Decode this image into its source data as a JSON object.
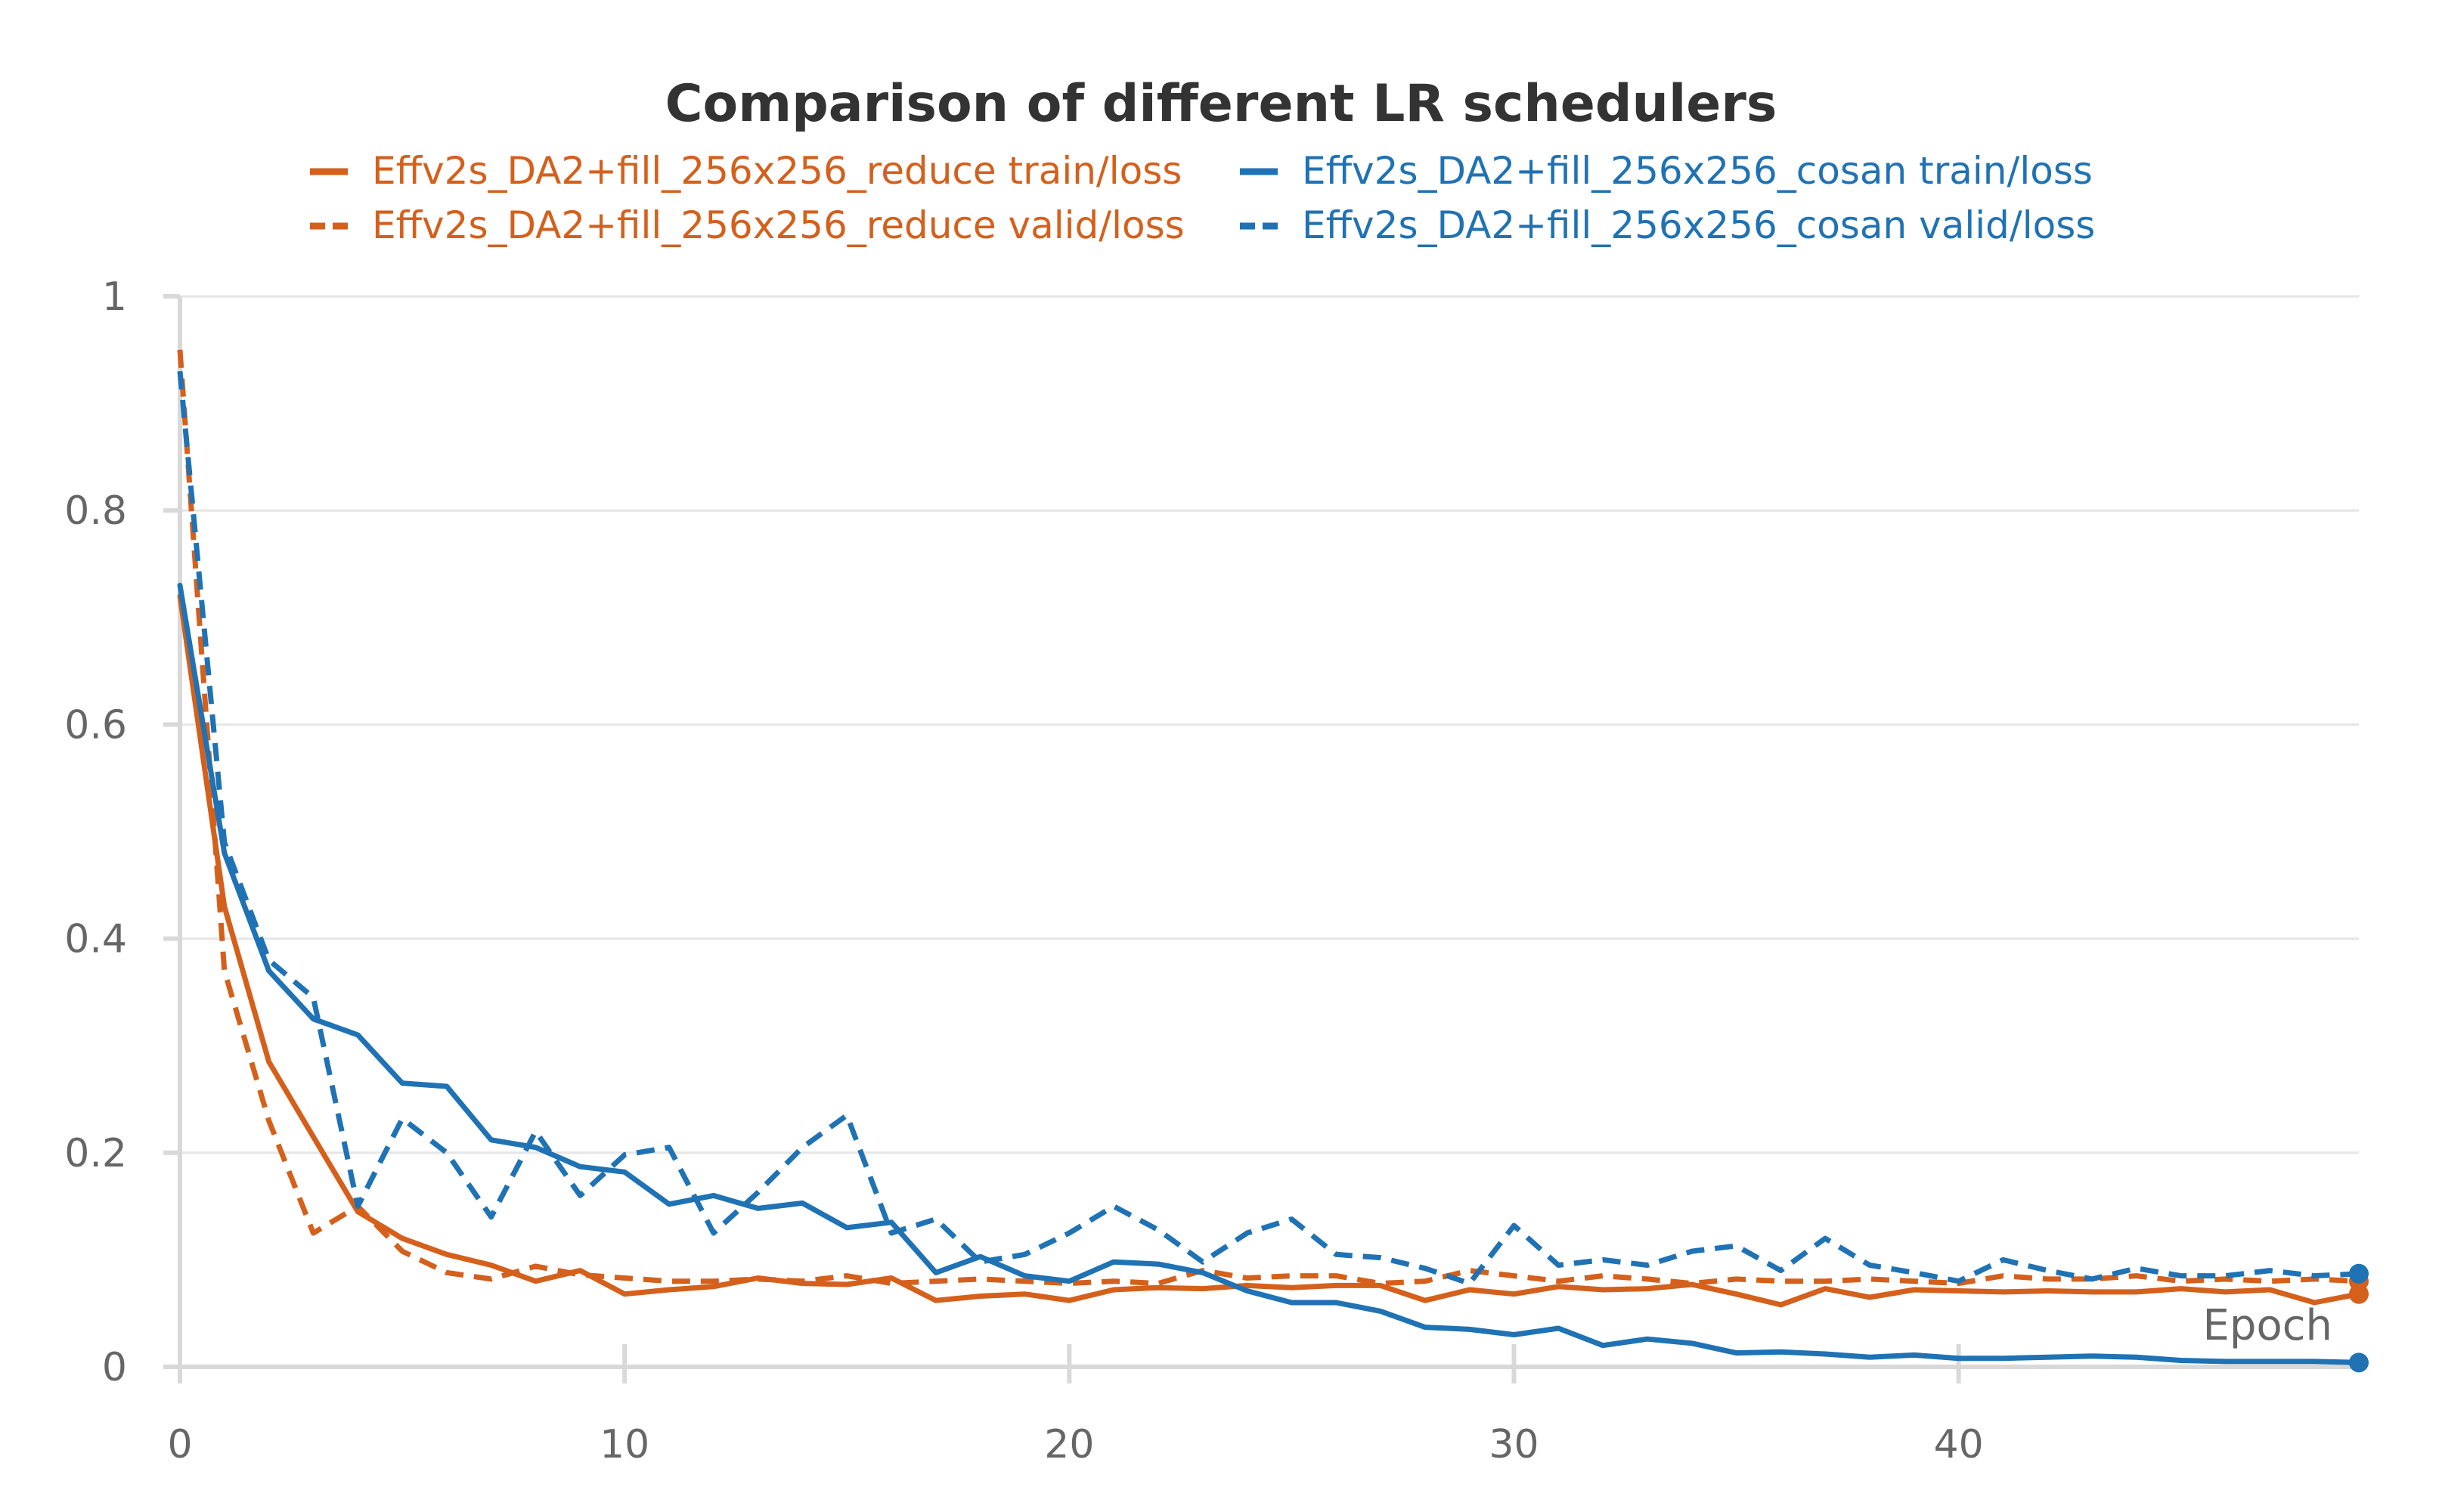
{
  "chart_data": {
    "type": "line",
    "title": "Comparison of different LR schedulers",
    "xlabel": "Epoch",
    "ylabel": "",
    "xlim": [
      0,
      49
    ],
    "ylim": [
      0,
      1
    ],
    "xticks": [
      0,
      10,
      20,
      30,
      40
    ],
    "yticks": [
      0,
      0.2,
      0.4,
      0.6,
      0.8,
      1
    ],
    "ytick_labels": [
      "0",
      "0.2",
      "0.4",
      "0.6",
      "0.8",
      "1"
    ],
    "grid": true,
    "legend_position": "top-center",
    "series": [
      {
        "name": "Effv2s_DA2+fill_256x256_reduce train/loss",
        "color": "#d4601c",
        "dash": "solid",
        "end_marker": true,
        "values": [
          0.72,
          0.43,
          0.285,
          0.215,
          0.145,
          0.12,
          0.105,
          0.095,
          0.08,
          0.09,
          0.068,
          0.072,
          0.075,
          0.083,
          0.078,
          0.077,
          0.083,
          0.062,
          0.066,
          0.068,
          0.062,
          0.072,
          0.074,
          0.073,
          0.076,
          0.074,
          0.076,
          0.076,
          0.062,
          0.072,
          0.068,
          0.075,
          0.072,
          0.073,
          0.077,
          0.068,
          0.058,
          0.073,
          0.065,
          0.072,
          0.071,
          0.07,
          0.071,
          0.07,
          0.07,
          0.073,
          0.07,
          0.072,
          0.06,
          0.068
        ]
      },
      {
        "name": "Effv2s_DA2+fill_256x256_reduce valid/loss",
        "color": "#d4601c",
        "dash": "dashed",
        "end_marker": true,
        "values": [
          0.95,
          0.37,
          0.23,
          0.125,
          0.15,
          0.108,
          0.088,
          0.082,
          0.094,
          0.086,
          0.083,
          0.08,
          0.08,
          0.082,
          0.08,
          0.085,
          0.078,
          0.08,
          0.082,
          0.08,
          0.078,
          0.08,
          0.078,
          0.09,
          0.083,
          0.085,
          0.085,
          0.078,
          0.08,
          0.09,
          0.085,
          0.08,
          0.085,
          0.082,
          0.078,
          0.082,
          0.08,
          0.08,
          0.082,
          0.08,
          0.078,
          0.085,
          0.082,
          0.082,
          0.085,
          0.08,
          0.082,
          0.08,
          0.082,
          0.08
        ]
      },
      {
        "name": "Effv2s_DA2+fill_256x256_cosan train/loss",
        "color": "#1f72b4",
        "dash": "solid",
        "end_marker": true,
        "values": [
          0.73,
          0.48,
          0.37,
          0.325,
          0.31,
          0.265,
          0.262,
          0.212,
          0.205,
          0.187,
          0.182,
          0.152,
          0.16,
          0.148,
          0.153,
          0.13,
          0.135,
          0.088,
          0.103,
          0.085,
          0.08,
          0.098,
          0.096,
          0.088,
          0.071,
          0.06,
          0.06,
          0.052,
          0.037,
          0.035,
          0.03,
          0.036,
          0.02,
          0.026,
          0.022,
          0.013,
          0.014,
          0.012,
          0.009,
          0.011,
          0.008,
          0.008,
          0.009,
          0.01,
          0.009,
          0.006,
          0.005,
          0.005,
          0.005,
          0.004
        ]
      },
      {
        "name": "Effv2s_DA2+fill_256x256_cosan valid/loss",
        "color": "#1f72b4",
        "dash": "dashed",
        "end_marker": true,
        "values": [
          0.93,
          0.49,
          0.38,
          0.345,
          0.15,
          0.232,
          0.2,
          0.14,
          0.22,
          0.16,
          0.198,
          0.205,
          0.125,
          0.163,
          0.205,
          0.235,
          0.125,
          0.138,
          0.098,
          0.105,
          0.125,
          0.15,
          0.128,
          0.098,
          0.125,
          0.138,
          0.105,
          0.102,
          0.092,
          0.078,
          0.132,
          0.095,
          0.1,
          0.095,
          0.108,
          0.113,
          0.09,
          0.12,
          0.095,
          0.088,
          0.08,
          0.1,
          0.09,
          0.082,
          0.092,
          0.085,
          0.085,
          0.09,
          0.085,
          0.087
        ]
      }
    ]
  }
}
